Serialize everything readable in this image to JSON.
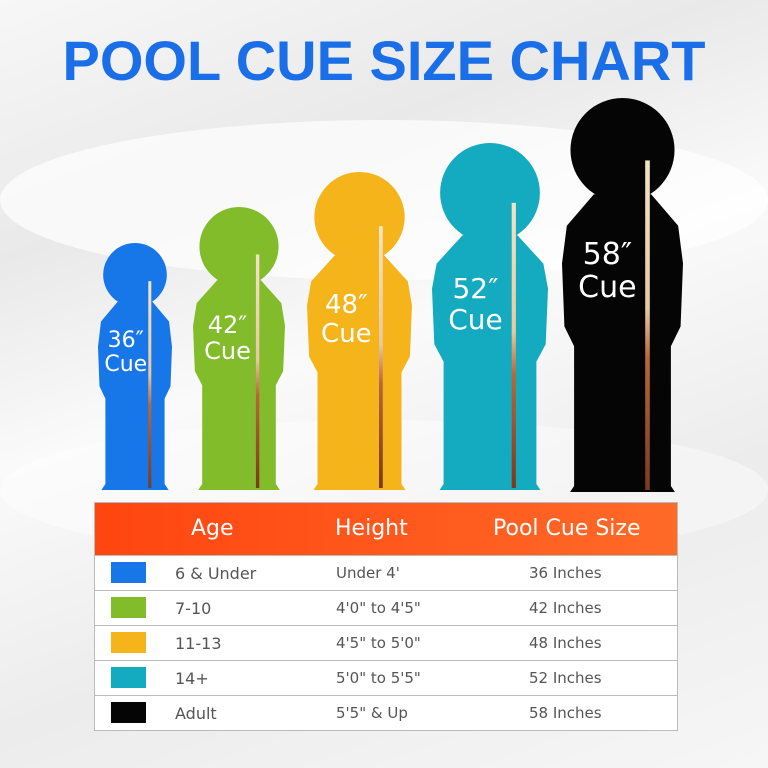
{
  "title": "POOL CUE SIZE CHART",
  "figures": [
    {
      "size": "36″",
      "label": "Cue",
      "color": "#1877e8"
    },
    {
      "size": "42″",
      "label": "Cue",
      "color": "#82bc2a"
    },
    {
      "size": "48″",
      "label": "Cue",
      "color": "#f4b41a"
    },
    {
      "size": "52″",
      "label": "Cue",
      "color": "#14aac0"
    },
    {
      "size": "58″",
      "label": "Cue",
      "color": "#050505"
    }
  ],
  "table": {
    "headers": [
      "Age",
      "Height",
      "Pool Cue Size"
    ],
    "rows": [
      {
        "age": "6 & Under",
        "height": "Under 4'",
        "size": "36 Inches",
        "color": "#1877e8"
      },
      {
        "age": "7-10",
        "height": "4'0\" to 4'5\"",
        "size": "42 Inches",
        "color": "#82bc2a"
      },
      {
        "age": "11-13",
        "height": "4'5\" to 5'0\"",
        "size": "48 Inches",
        "color": "#f4b41a"
      },
      {
        "age": "14+",
        "height": "5'0\" to 5'5\"",
        "size": "52 Inches",
        "color": "#14aac0"
      },
      {
        "age": "Adult",
        "height": "5'5\" & Up",
        "size": "58 Inches",
        "color": "#050505"
      }
    ]
  }
}
